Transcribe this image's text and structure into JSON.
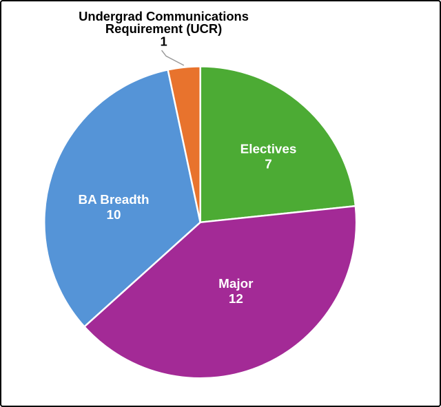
{
  "chart_data": {
    "type": "pie",
    "title": "",
    "categories": [
      "Electives",
      "Major",
      "BA Breadth",
      "Undergrad Communications Requirement (UCR)"
    ],
    "values": [
      7,
      12,
      10,
      1
    ],
    "total": 30,
    "start_angle_deg": 0,
    "direction": "clockwise",
    "legend": "none",
    "background_color": "#FFFFFF",
    "border_color": "#000000",
    "separator_color": "#FFFFFF",
    "leader_line_color": "#999999",
    "inside_label_color": "#FFFFFF",
    "outside_label_color": "#000000",
    "slices": [
      {
        "id": "electives",
        "label": "Electives",
        "value": 7,
        "color": "#4CAB34",
        "label_position": "inside"
      },
      {
        "id": "major",
        "label": "Major",
        "value": 12,
        "color": "#A32A96",
        "label_position": "inside"
      },
      {
        "id": "ba-breadth",
        "label": "BA Breadth",
        "value": 10,
        "color": "#5594D7",
        "label_position": "inside"
      },
      {
        "id": "ucr",
        "label": "Undergrad Communications Requirement (UCR)",
        "value": 1,
        "color": "#E8732D",
        "label_position": "outside",
        "label_lines": [
          "Undergrad Communications",
          "Requirement (UCR)"
        ]
      }
    ]
  }
}
